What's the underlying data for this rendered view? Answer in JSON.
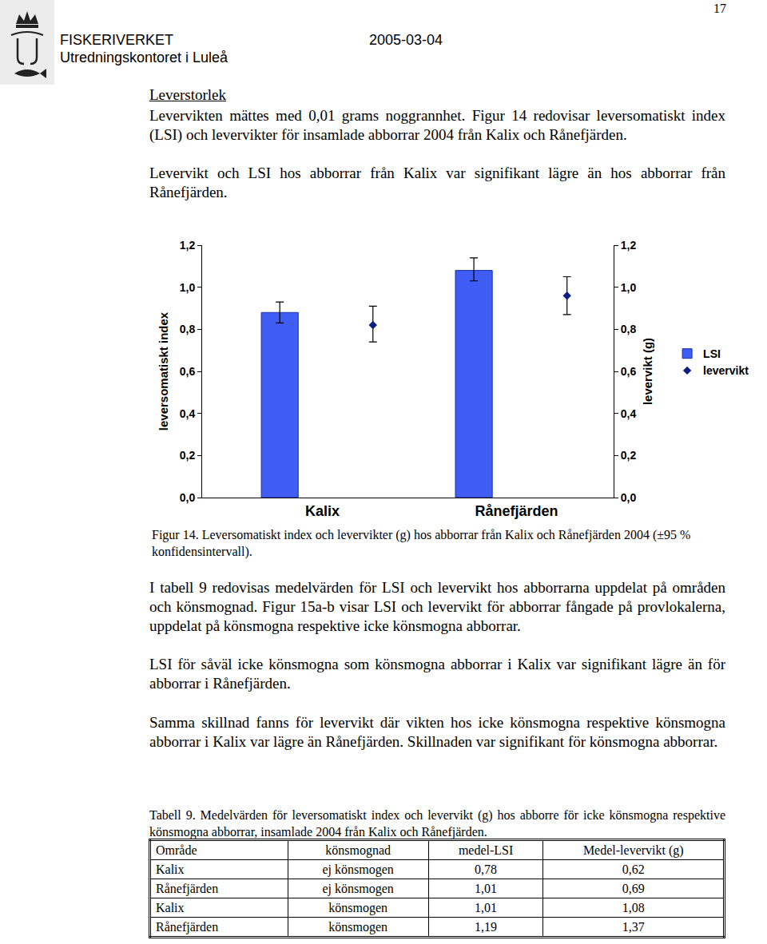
{
  "header": {
    "page": "17",
    "organization": "FISKERIVERKET",
    "office": "Utredningskontoret i Luleå",
    "date": "2005-03-04"
  },
  "heading": "Leverstorlek",
  "paragraphs_before": [
    "Levervikten mättes med 0,01 grams noggrannhet. Figur 14 redovisar leversomatiskt index (LSI) och levervikter för insamlade abborrar 2004 från Kalix och Rånefjärden.",
    "Levervikt och LSI hos abborrar från Kalix var signifikant lägre än hos abborrar från Rånefjärden."
  ],
  "chart_data": {
    "type": "bar",
    "categories": [
      "Kalix",
      "Rånefjärden"
    ],
    "y_label": "leversomatiskt index",
    "y2_label": "levervikt (g)",
    "ylim": [
      0,
      1.2
    ],
    "yticks": [
      {
        "value": 0,
        "label": "0,0"
      },
      {
        "value": 0.2,
        "label": "0,2"
      },
      {
        "value": 0.4,
        "label": "0,4"
      },
      {
        "value": 0.6,
        "label": "0,6"
      },
      {
        "value": 0.8,
        "label": "0,8"
      },
      {
        "value": 1.0,
        "label": "1,0"
      },
      {
        "value": 1.2,
        "label": "1,2"
      }
    ],
    "y2lim": [
      0,
      1.2
    ],
    "y2ticks": [
      {
        "value": 0,
        "label": "0,0"
      },
      {
        "value": 0.2,
        "label": "0,2"
      },
      {
        "value": 0.4,
        "label": "0,4"
      },
      {
        "value": 0.6,
        "label": "0,6"
      },
      {
        "value": 0.8,
        "label": "0,8"
      },
      {
        "value": 1.0,
        "label": "1,0"
      },
      {
        "value": 1.2,
        "label": "1,2"
      }
    ],
    "grid": false,
    "legend": "right",
    "series": [
      {
        "name": "LSI",
        "type": "bar",
        "color": "#3f5cf5",
        "values": [
          0.88,
          1.08
        ],
        "error_plus": [
          0.05,
          0.06
        ],
        "error_minus": [
          0.05,
          0.05
        ]
      },
      {
        "name": "levervikt",
        "type": "scatter",
        "marker": "diamond",
        "axis": "y2",
        "color": "#0a1f80",
        "values": [
          0.82,
          0.96
        ],
        "error_plus": [
          0.09,
          0.09
        ],
        "error_minus": [
          0.08,
          0.09
        ]
      }
    ]
  },
  "figure_caption": "Figur 14. Leversomatiskt index och levervikter (g) hos abborrar från Kalix och Rånefjärden 2004 (±95 % konfidensintervall).",
  "paragraphs_after": [
    "I tabell 9 redovisas medelvärden för LSI och levervikt hos abborrarna uppdelat på områden och könsmognad. Figur 15a-b visar LSI och levervikt för abborrar fångade på provlokalerna, uppdelat på könsmogna respektive icke könsmogna abborrar.",
    "LSI för såväl icke könsmogna som könsmogna abborrar i Kalix var signifikant lägre än för abborrar i Rånefjärden.",
    "Samma skillnad fanns för levervikt där vikten hos icke könsmogna respektive könsmogna abborrar i Kalix var lägre än Rånefjärden. Skillnaden var signifikant för könsmogna abborrar."
  ],
  "table": {
    "caption": "Tabell 9. Medelvärden för leversomatiskt index och levervikt (g) hos abborre för icke könsmogna respektive könsmogna abborrar, insamlade 2004 från Kalix och Rånefjärden.",
    "columns": [
      "Område",
      "könsmognad",
      "medel-LSI",
      "Medel-levervikt (g)"
    ],
    "rows": [
      [
        "Kalix",
        "ej könsmogen",
        "0,78",
        "0,62"
      ],
      [
        "Rånefjärden",
        "ej könsmogen",
        "1,01",
        "0,69"
      ],
      [
        "Kalix",
        "könsmogen",
        "1,01",
        "1,08"
      ],
      [
        "Rånefjärden",
        "könsmogen",
        "1,19",
        "1,37"
      ]
    ]
  }
}
